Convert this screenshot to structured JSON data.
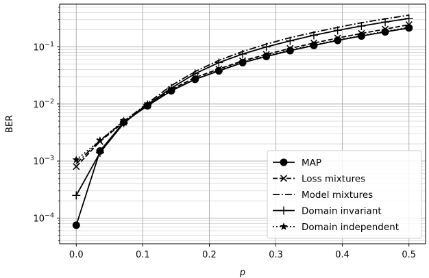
{
  "chart_data": {
    "type": "line",
    "xlabel": "p",
    "ylabel": "BER",
    "xlim": [
      -0.025,
      0.525
    ],
    "ylim_log10": [
      -4.45,
      -0.25
    ],
    "yscale": "log",
    "grid": "major and minor",
    "legend_position": "lower-right",
    "x_ticks": [
      {
        "value": 0.0,
        "label": "0.0"
      },
      {
        "value": 0.1,
        "label": "0.1"
      },
      {
        "value": 0.2,
        "label": "0.2"
      },
      {
        "value": 0.3,
        "label": "0.3"
      },
      {
        "value": 0.4,
        "label": "0.4"
      },
      {
        "value": 0.5,
        "label": "0.5"
      }
    ],
    "y_ticks": [
      {
        "exp": -4,
        "base": "10",
        "sup": "−4"
      },
      {
        "exp": -3,
        "base": "10",
        "sup": "−3"
      },
      {
        "exp": -2,
        "base": "10",
        "sup": "−2"
      },
      {
        "exp": -1,
        "base": "10",
        "sup": "−1"
      }
    ],
    "x": [
      0.0,
      0.0357,
      0.0714,
      0.1071,
      0.1429,
      0.1786,
      0.2143,
      0.25,
      0.2857,
      0.3214,
      0.3571,
      0.3929,
      0.4286,
      0.4643,
      0.5
    ],
    "series": [
      {
        "name": "MAP",
        "linestyle": "solid",
        "marker": "circle",
        "values": [
          7.5e-05,
          0.0015,
          0.0048,
          0.0093,
          0.017,
          0.027,
          0.038,
          0.053,
          0.068,
          0.086,
          0.106,
          0.13,
          0.155,
          0.183,
          0.215
        ]
      },
      {
        "name": "Loss mixtures",
        "linestyle": "dashed",
        "marker": "x",
        "values": [
          0.0008,
          0.0022,
          0.0048,
          0.0095,
          0.018,
          0.029,
          0.041,
          0.057,
          0.074,
          0.094,
          0.117,
          0.143,
          0.172,
          0.205,
          0.245
        ]
      },
      {
        "name": "Model mixtures",
        "linestyle": "dashdot",
        "marker": "none",
        "values": [
          0.0009,
          0.0023,
          0.0049,
          0.0103,
          0.021,
          0.037,
          0.058,
          0.083,
          0.112,
          0.145,
          0.18,
          0.22,
          0.265,
          0.31,
          0.36
        ]
      },
      {
        "name": "Domain invariant",
        "linestyle": "solid",
        "marker": "plus",
        "values": [
          0.00025,
          0.0014,
          0.0046,
          0.0098,
          0.019,
          0.034,
          0.053,
          0.075,
          0.1,
          0.128,
          0.16,
          0.195,
          0.232,
          0.272,
          0.315
        ]
      },
      {
        "name": "Domain independent",
        "linestyle": "dotted",
        "marker": "star",
        "values": [
          0.00105,
          0.0023,
          0.0051,
          0.0097,
          0.0175,
          0.027,
          0.039,
          0.054,
          0.07,
          0.088,
          0.108,
          0.132,
          0.158,
          0.187,
          0.22
        ]
      }
    ]
  }
}
